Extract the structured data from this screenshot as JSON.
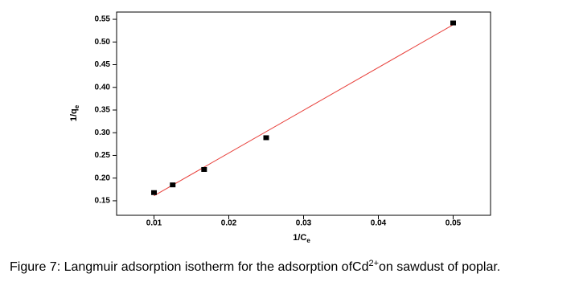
{
  "chart_data": {
    "type": "scatter",
    "x_label": [
      "1/C",
      "e"
    ],
    "y_label": [
      "1/q",
      "e"
    ],
    "caption": [
      "Figure 7: Langmuir adsorption isotherm for the adsorption ofCd",
      "2+",
      "on sawdust of poplar."
    ],
    "points": {
      "x": [
        0.01,
        0.0125,
        0.0167,
        0.025,
        0.05
      ],
      "y": [
        0.168,
        0.185,
        0.219,
        0.289,
        0.542
      ],
      "color": "#000000"
    },
    "fit": {
      "x": [
        0.01,
        0.05
      ],
      "y": [
        0.161,
        0.538
      ],
      "color": "#e8413c"
    },
    "xlim": [
      0.005,
      0.055
    ],
    "ylim": [
      0.118,
      0.566
    ],
    "xticks": [
      0.01,
      0.02,
      0.03,
      0.04,
      0.05
    ],
    "yticks": [
      0.15,
      {
        "value": 0.2,
        "label": "0.20"
      },
      0.25,
      {
        "value": 0.3,
        "label": "0.30"
      },
      0.35,
      {
        "value": 0.4,
        "label": "0.40"
      },
      0.45,
      {
        "value": 0.5,
        "label": "0.50"
      },
      0.55
    ]
  }
}
